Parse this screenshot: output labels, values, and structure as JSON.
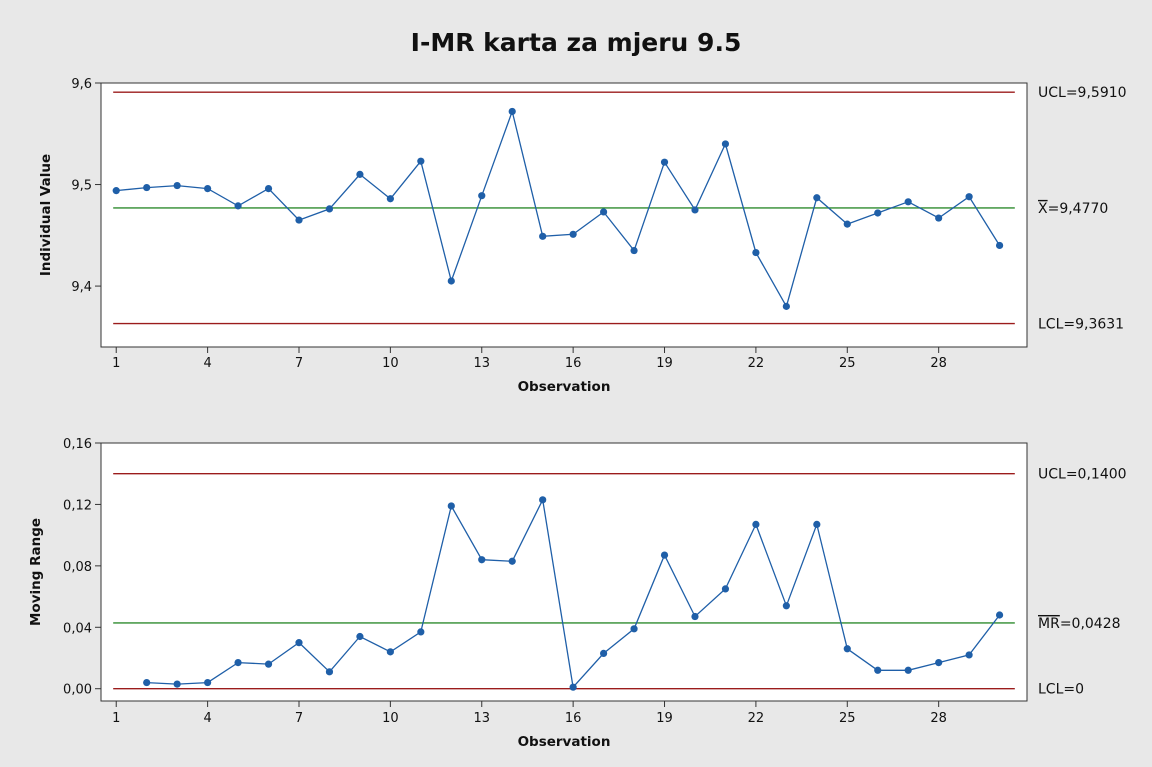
{
  "title": "I-MR karta za mjeru 9.5",
  "colors": {
    "background": "#e8e8e8",
    "plot_background": "#ffffff",
    "data_line": "#1f5fa8",
    "center_line": "#2e8b2e",
    "control_limit": "#9b1c1c"
  },
  "chart_data": [
    {
      "type": "line",
      "name": "individuals",
      "xlabel": "Observation",
      "ylabel": "Individual Value",
      "xticks": [
        "1",
        "4",
        "7",
        "10",
        "13",
        "16",
        "19",
        "22",
        "25",
        "28"
      ],
      "yticks": [
        "9,4",
        "9,5",
        "9,6"
      ],
      "ylim": [
        9.34,
        9.6
      ],
      "x": [
        1,
        2,
        3,
        4,
        5,
        6,
        7,
        8,
        9,
        10,
        11,
        12,
        13,
        14,
        15,
        16,
        17,
        18,
        19,
        20,
        21,
        22,
        23,
        24,
        25,
        26,
        27,
        28,
        29,
        30
      ],
      "values": [
        9.494,
        9.497,
        9.499,
        9.496,
        9.479,
        9.496,
        9.465,
        9.476,
        9.51,
        9.486,
        9.523,
        9.405,
        9.489,
        9.572,
        9.449,
        9.451,
        9.473,
        9.435,
        9.522,
        9.475,
        9.54,
        9.433,
        9.38,
        9.487,
        9.461,
        9.472,
        9.483,
        9.467,
        9.488,
        9.44
      ],
      "limits": {
        "ucl": {
          "value": 9.591,
          "label": "UCL=9,5910"
        },
        "center": {
          "value": 9.477,
          "label_bar": "X",
          "label": "=9,4770"
        },
        "lcl": {
          "value": 9.3631,
          "label": "LCL=9,3631"
        }
      }
    },
    {
      "type": "line",
      "name": "moving-range",
      "xlabel": "Observation",
      "ylabel": "Moving Range",
      "xticks": [
        "1",
        "4",
        "7",
        "10",
        "13",
        "16",
        "19",
        "22",
        "25",
        "28"
      ],
      "yticks": [
        "0,00",
        "0,04",
        "0,08",
        "0,12",
        "0,16"
      ],
      "ylim": [
        -0.008,
        0.16
      ],
      "x": [
        2,
        3,
        4,
        5,
        6,
        7,
        8,
        9,
        10,
        11,
        12,
        13,
        14,
        15,
        16,
        17,
        18,
        19,
        20,
        21,
        22,
        23,
        24,
        25,
        26,
        27,
        28,
        29,
        30
      ],
      "values": [
        0.004,
        0.003,
        0.004,
        0.017,
        0.016,
        0.03,
        0.011,
        0.034,
        0.024,
        0.037,
        0.119,
        0.084,
        0.083,
        0.123,
        0.001,
        0.023,
        0.039,
        0.087,
        0.047,
        0.065,
        0.107,
        0.054,
        0.107,
        0.026,
        0.012,
        0.012,
        0.017,
        0.022,
        0.048
      ],
      "limits": {
        "ucl": {
          "value": 0.14,
          "label": "UCL=0,1400"
        },
        "center": {
          "value": 0.0428,
          "label_bar": "MR",
          "label": "=0,0428"
        },
        "lcl": {
          "value": 0.0,
          "label": "LCL=0"
        }
      }
    }
  ]
}
